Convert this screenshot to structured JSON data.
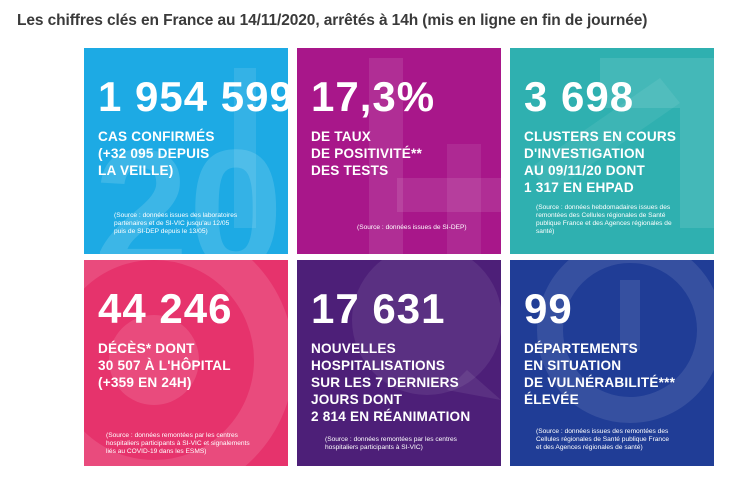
{
  "heading": "Les chiffres clés en France au 14/11/2020, arrêtés à 14h (mis en ligne en fin de journée)",
  "colors": {
    "confirmed": "#1daae4",
    "positivity": "#a8178a",
    "clusters": "#2fb0b0",
    "deaths": "#e6336c",
    "hospital": "#4d1f78",
    "departments": "#203d96"
  },
  "tiles": [
    {
      "number": "1 954 599",
      "label": "CAS CONFIRMÉS\n(+32 095 DEPUIS\nLA VEILLE)",
      "source": "(Source : données issues des laboratoires\npartenaires et de SI-VIC jusqu'au 12/05\npuis de SI-DEP depuis le 13/05)"
    },
    {
      "number": "17,3%",
      "label": "DE TAUX\nDE POSITIVITÉ**\nDES TESTS",
      "source": "(Source : données issues de SI-DEP)"
    },
    {
      "number": "3 698",
      "label": "CLUSTERS EN COURS\nD'INVESTIGATION\nAU 09/11/20 DONT\n1 317 EN EHPAD",
      "source": "(Source : données hebdomadaires issues des\nremontées des Cellules régionales de Santé\npublique France et des Agences régionales de\nsanté)"
    },
    {
      "number": "44 246",
      "label": "DÉCÈS* DONT\n30 507 À L'HÔPITAL\n(+359 EN 24H)",
      "source": "(Source : données remontées par les centres\nhospitaliers participants à SI-VIC et signalements\nliés au COVID-19 dans les ESMS)"
    },
    {
      "number": "17 631",
      "label": "NOUVELLES\nHOSPITALISATIONS\nSUR LES 7 DERNIERS\nJOURS DONT\n2 814 EN RÉANIMATION",
      "source": "(Source : données remontées par les centres\nhospitaliers participants à SI-VIC)"
    },
    {
      "number": "99",
      "label": "DÉPARTEMENTS\nEN SITUATION\nDE VULNÉRABILITÉ***\nÉLEVÉE",
      "source": "(Source : données issues des remontées des\nCellules régionales de Santé publique France\net des Agences régionales de santé)"
    }
  ]
}
